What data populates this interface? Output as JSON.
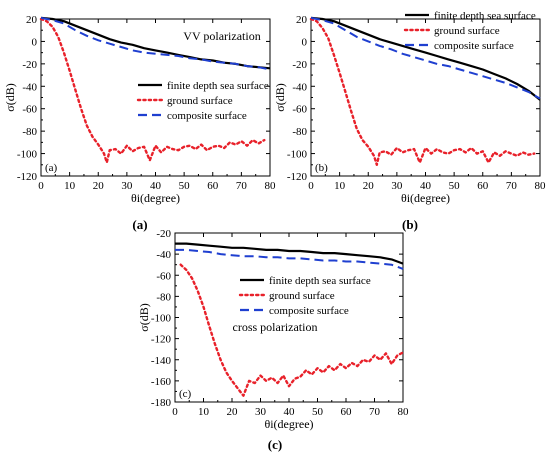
{
  "figure": {
    "panel_captions": [
      "(a)",
      "(b)",
      "(c)"
    ]
  },
  "chart_data": [
    {
      "type": "line",
      "panel_label": "(a)",
      "caption": "(a)",
      "annotation": "VV polarization",
      "xlabel": "θi(degree)",
      "ylabel": "σ(dB)",
      "xlim": [
        0,
        80
      ],
      "ylim": [
        -120,
        20
      ],
      "xticks": [
        0,
        10,
        20,
        30,
        40,
        50,
        60,
        70,
        80
      ],
      "yticks": [
        20,
        0,
        -20,
        -40,
        -60,
        -80,
        -100,
        -120
      ],
      "grid": false,
      "legend_position": "center-right",
      "series": [
        {
          "name": "finite depth sea surface",
          "color": "#000000",
          "style": "solid",
          "x": [
            0,
            4,
            8,
            12,
            16,
            20,
            24,
            28,
            32,
            36,
            40,
            44,
            48,
            52,
            56,
            60,
            64,
            68,
            72,
            76,
            80
          ],
          "y": [
            21,
            20,
            18,
            14,
            10,
            6,
            2,
            -1,
            -3,
            -6,
            -8,
            -10,
            -12,
            -14,
            -16,
            -17,
            -19,
            -20,
            -22,
            -23,
            -24
          ]
        },
        {
          "name": "ground surface",
          "color": "#e8212a",
          "style": "dotted",
          "x": [
            0,
            2,
            4,
            6,
            8,
            10,
            12,
            14,
            16,
            18,
            20,
            22,
            23,
            24,
            26,
            28,
            30,
            32,
            34,
            36,
            38,
            40,
            42,
            44,
            46,
            48,
            50,
            52,
            54,
            56,
            58,
            60,
            62,
            64,
            66,
            68,
            70,
            72,
            74,
            76,
            78
          ],
          "y": [
            20,
            18,
            13,
            4,
            -10,
            -26,
            -43,
            -60,
            -75,
            -85,
            -92,
            -100,
            -108,
            -97,
            -96,
            -100,
            -93,
            -98,
            -95,
            -94,
            -106,
            -93,
            -99,
            -94,
            -96,
            -97,
            -94,
            -93,
            -96,
            -92,
            -97,
            -94,
            -93,
            -95,
            -90,
            -92,
            -89,
            -93,
            -88,
            -91,
            -88
          ]
        },
        {
          "name": "composite surface",
          "color": "#1f3fd0",
          "style": "dashed",
          "x": [
            0,
            4,
            8,
            12,
            16,
            20,
            24,
            28,
            32,
            36,
            40,
            44,
            48,
            52,
            56,
            60,
            64,
            68,
            72,
            76,
            80
          ],
          "y": [
            21,
            19,
            16,
            10,
            5,
            1,
            -2,
            -5,
            -8,
            -10,
            -11,
            -12,
            -13,
            -15,
            -16,
            -18,
            -19,
            -20,
            -22,
            -23,
            -25
          ]
        }
      ]
    },
    {
      "type": "line",
      "panel_label": "(b)",
      "caption": "(b)",
      "xlabel": "θi(degree)",
      "ylabel": "σ(dB)",
      "xlim": [
        0,
        80
      ],
      "ylim": [
        -120,
        20
      ],
      "xticks": [
        0,
        10,
        20,
        30,
        40,
        50,
        60,
        70,
        80
      ],
      "yticks": [
        20,
        0,
        -20,
        -40,
        -60,
        -80,
        -100,
        -120
      ],
      "grid": false,
      "legend_position": "top-right",
      "series": [
        {
          "name": "finite depth sea surface",
          "color": "#000000",
          "style": "solid",
          "x": [
            0,
            4,
            8,
            12,
            16,
            20,
            24,
            28,
            32,
            36,
            40,
            44,
            48,
            52,
            56,
            60,
            64,
            68,
            72,
            76,
            80
          ],
          "y": [
            21,
            20,
            18,
            14,
            10,
            6,
            2,
            -1,
            -4,
            -7,
            -10,
            -13,
            -16,
            -19,
            -22,
            -25,
            -29,
            -33,
            -38,
            -44,
            -52
          ]
        },
        {
          "name": "ground surface",
          "color": "#e8212a",
          "style": "dotted",
          "x": [
            0,
            2,
            4,
            6,
            8,
            10,
            12,
            14,
            16,
            18,
            20,
            22,
            23,
            24,
            26,
            28,
            30,
            32,
            34,
            36,
            38,
            40,
            42,
            44,
            46,
            48,
            50,
            52,
            54,
            56,
            58,
            60,
            62,
            64,
            66,
            68,
            70,
            72,
            74,
            76,
            78
          ],
          "y": [
            20,
            18,
            12,
            3,
            -12,
            -28,
            -45,
            -62,
            -78,
            -88,
            -94,
            -102,
            -110,
            -99,
            -98,
            -101,
            -95,
            -99,
            -97,
            -96,
            -108,
            -95,
            -100,
            -96,
            -99,
            -100,
            -97,
            -96,
            -99,
            -95,
            -100,
            -98,
            -108,
            -99,
            -102,
            -98,
            -100,
            -102,
            -99,
            -101,
            -100
          ]
        },
        {
          "name": "composite surface",
          "color": "#1f3fd0",
          "style": "dashed",
          "x": [
            0,
            4,
            8,
            12,
            16,
            20,
            24,
            28,
            32,
            36,
            40,
            44,
            48,
            52,
            56,
            60,
            64,
            68,
            72,
            76,
            80
          ],
          "y": [
            21,
            19,
            16,
            10,
            4,
            0,
            -4,
            -7,
            -11,
            -14,
            -17,
            -20,
            -22,
            -25,
            -28,
            -31,
            -34,
            -37,
            -41,
            -45,
            -51
          ]
        }
      ]
    },
    {
      "type": "line",
      "panel_label": "(c)",
      "caption": "(c)",
      "annotation": "cross polarization",
      "xlabel": "θi(degree)",
      "ylabel": "σ(dB)",
      "xlim": [
        0,
        80
      ],
      "ylim": [
        -180,
        -20
      ],
      "xticks": [
        0,
        10,
        20,
        30,
        40,
        50,
        60,
        70,
        80
      ],
      "yticks": [
        -20,
        -40,
        -60,
        -80,
        -100,
        -120,
        -140,
        -160,
        -180
      ],
      "grid": false,
      "legend_position": "top-right",
      "series": [
        {
          "name": "finite depth sea surface",
          "color": "#000000",
          "style": "solid",
          "x": [
            0,
            4,
            8,
            12,
            16,
            20,
            24,
            28,
            32,
            36,
            40,
            44,
            48,
            52,
            56,
            60,
            64,
            68,
            72,
            76,
            80
          ],
          "y": [
            -30,
            -30,
            -31,
            -32,
            -33,
            -34,
            -34,
            -35,
            -36,
            -36,
            -37,
            -37,
            -38,
            -39,
            -39,
            -40,
            -41,
            -42,
            -43,
            -45,
            -49
          ]
        },
        {
          "name": "ground surface",
          "color": "#e8212a",
          "style": "dotted",
          "x": [
            2,
            4,
            6,
            8,
            10,
            12,
            14,
            16,
            18,
            20,
            22,
            24,
            26,
            28,
            30,
            32,
            34,
            36,
            38,
            40,
            42,
            44,
            46,
            48,
            50,
            52,
            54,
            56,
            58,
            60,
            62,
            64,
            66,
            68,
            70,
            72,
            74,
            76,
            78,
            80
          ],
          "y": [
            -50,
            -55,
            -63,
            -75,
            -90,
            -108,
            -125,
            -140,
            -152,
            -160,
            -167,
            -174,
            -160,
            -162,
            -155,
            -160,
            -157,
            -162,
            -155,
            -165,
            -158,
            -156,
            -150,
            -154,
            -148,
            -152,
            -146,
            -150,
            -144,
            -148,
            -143,
            -146,
            -140,
            -142,
            -136,
            -140,
            -134,
            -144,
            -136,
            -133
          ]
        },
        {
          "name": "composite surface",
          "color": "#1f3fd0",
          "style": "dashed",
          "x": [
            0,
            4,
            8,
            12,
            16,
            20,
            24,
            28,
            32,
            36,
            40,
            44,
            48,
            52,
            56,
            60,
            64,
            68,
            72,
            76,
            80
          ],
          "y": [
            -36,
            -36,
            -37,
            -38,
            -40,
            -41,
            -42,
            -42,
            -43,
            -43,
            -44,
            -44,
            -45,
            -46,
            -46,
            -47,
            -47,
            -48,
            -49,
            -50,
            -54
          ]
        }
      ]
    }
  ]
}
